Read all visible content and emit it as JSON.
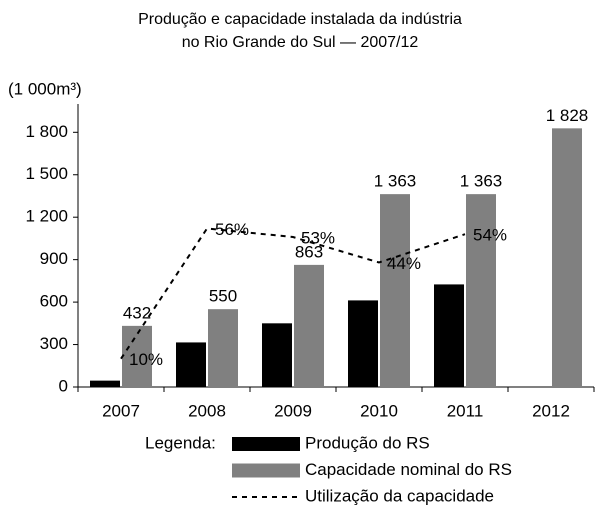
{
  "chart_data": {
    "type": "bar",
    "title": [
      "Produção e capacidade instalada da indústria",
      "no Rio Grande do Sul — 2007/12"
    ],
    "y_label": "(1 000m³)",
    "categories": [
      "2007",
      "2008",
      "2009",
      "2010",
      "2011",
      "2012"
    ],
    "series": [
      {
        "name": "Produção do RS",
        "color": "#000000",
        "values": [
          45,
          315,
          450,
          612,
          725,
          null
        ]
      },
      {
        "name": "Capacidade nominal do RS",
        "color": "#808080",
        "values": [
          432,
          550,
          863,
          1363,
          1363,
          1828
        ],
        "value_labels": [
          "432",
          "550",
          "863",
          "1 363",
          "1 363",
          "1 828"
        ]
      },
      {
        "name": "Utilização da capacidade",
        "type": "line",
        "axis": "y2",
        "color": "#000000",
        "dashed": true,
        "values": [
          10,
          56,
          53,
          44,
          54,
          null
        ],
        "value_labels": [
          "10%",
          "56%",
          "53%",
          "44%",
          "54%",
          null
        ]
      }
    ],
    "legend_title": "Legenda:",
    "ylim": [
      0,
      2000
    ],
    "yticks": [
      0,
      300,
      600,
      900,
      {
        "value": 1200,
        "label": "1 200"
      },
      {
        "value": 1500,
        "label": "1 500"
      },
      {
        "value": 1800,
        "label": "1 800"
      }
    ],
    "y2lim": [
      0,
      100
    ],
    "grid": false
  }
}
